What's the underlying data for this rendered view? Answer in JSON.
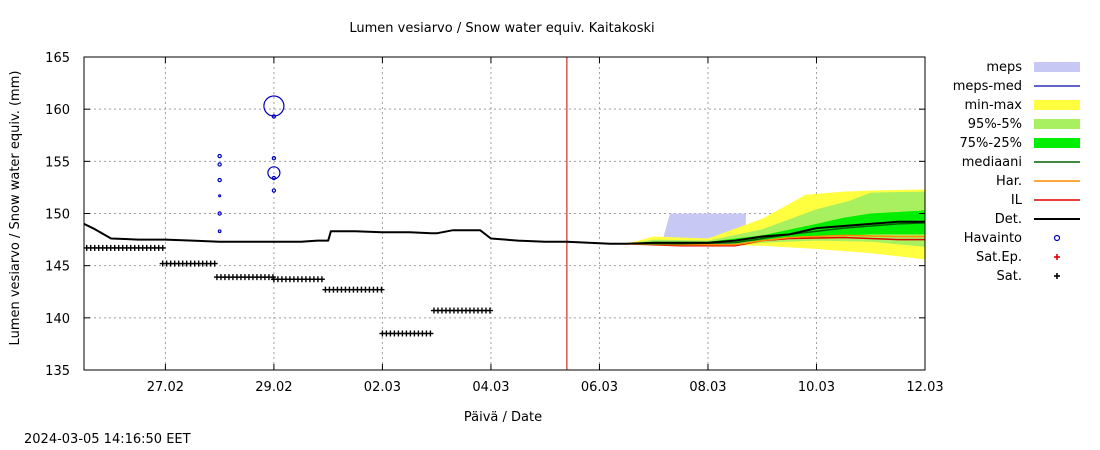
{
  "chart_data": {
    "type": "line",
    "title": "Lumen vesiarvo / Snow water equiv.  Kaitakoski",
    "xlabel": "Päivä / Date",
    "ylabel": "Lumen vesiarvo / Snow water equiv. (mm)",
    "footer": "2024-03-05 14:16:50 EET",
    "ylim": [
      135,
      165
    ],
    "yticks": [
      135,
      140,
      145,
      150,
      155,
      160,
      165
    ],
    "xlim_days": [
      -1.5,
      14.0
    ],
    "xticks": [
      {
        "label": "27.02",
        "day": 0
      },
      {
        "label": "29.02",
        "day": 2
      },
      {
        "label": "02.03",
        "day": 4
      },
      {
        "label": "04.03",
        "day": 6
      },
      {
        "label": "06.03",
        "day": 8
      },
      {
        "label": "08.03",
        "day": 10
      },
      {
        "label": "10.03",
        "day": 12
      },
      {
        "label": "12.03",
        "day": 14
      }
    ],
    "grid": true,
    "legend_position": "right",
    "now_day": 7.4,
    "colors": {
      "meps": "#c8c8f5",
      "meps_med": "#3030c0",
      "min_max": "#ffff40",
      "p95_5": "#a8f060",
      "p75_25": "#00ee00",
      "median": "#006000",
      "har": "#ff8c00",
      "il": "#e00000",
      "det": "#000000",
      "observation": "#0000c0",
      "sat_ep": "#e00000",
      "sat": "#000000",
      "now_line": "#cc0000"
    },
    "legend": [
      {
        "label": "meps",
        "key": "meps",
        "style": "band"
      },
      {
        "label": "meps-med",
        "key": "meps_med",
        "style": "line"
      },
      {
        "label": "min-max",
        "key": "min_max",
        "style": "band"
      },
      {
        "label": "95%-5%",
        "key": "p95_5",
        "style": "band"
      },
      {
        "label": "75%-25%",
        "key": "p75_25",
        "style": "band"
      },
      {
        "label": "mediaani",
        "key": "median",
        "style": "line"
      },
      {
        "label": "Har.",
        "key": "har",
        "style": "line"
      },
      {
        "label": "IL",
        "key": "il",
        "style": "line"
      },
      {
        "label": "Det.",
        "key": "det",
        "style": "thickline"
      },
      {
        "label": "Havainto",
        "key": "observation",
        "style": "circle"
      },
      {
        "label": "Sat.Ep.",
        "key": "sat_ep",
        "style": "plus"
      },
      {
        "label": "Sat.",
        "key": "sat",
        "style": "plus"
      }
    ],
    "series": [
      {
        "name": "Det.",
        "key": "det",
        "x": [
          -1.5,
          -1.3,
          -1.0,
          -0.5,
          0.0,
          0.5,
          1.0,
          1.5,
          2.0,
          2.5,
          2.8,
          3.0,
          3.05,
          3.5,
          4.0,
          4.5,
          4.9,
          5.0,
          5.3,
          5.5,
          5.8,
          6.0,
          6.5,
          7.0,
          7.4,
          7.8,
          8.2,
          8.5,
          9.0,
          9.5,
          10.0,
          10.5,
          11.0,
          11.5,
          12.0,
          12.5,
          13.0,
          13.5,
          14.0
        ],
        "y": [
          149.0,
          148.5,
          147.6,
          147.5,
          147.5,
          147.4,
          147.3,
          147.3,
          147.3,
          147.3,
          147.4,
          147.4,
          148.3,
          148.3,
          148.2,
          148.2,
          148.1,
          148.1,
          148.4,
          148.4,
          148.4,
          147.6,
          147.4,
          147.3,
          147.3,
          147.2,
          147.1,
          147.1,
          147.2,
          147.2,
          147.2,
          147.4,
          147.8,
          148.0,
          148.6,
          148.8,
          149.0,
          149.2,
          149.2
        ]
      },
      {
        "name": "IL",
        "key": "il",
        "x": [
          8.5,
          9.5,
          10.5,
          11.0,
          11.5,
          12.5,
          13.5,
          14.0
        ],
        "y": [
          147.1,
          146.9,
          146.9,
          147.4,
          147.6,
          147.7,
          147.5,
          147.5
        ]
      },
      {
        "name": "Har.",
        "key": "har",
        "x": [
          8.5,
          9.5,
          10.5,
          11.0,
          11.5,
          12.5,
          13.5,
          14.0
        ],
        "y": [
          147.1,
          147.0,
          147.0,
          147.4,
          147.7,
          147.9,
          147.8,
          147.8
        ]
      },
      {
        "name": "mediaani",
        "key": "median",
        "x": [
          8.5,
          9.5,
          10.5,
          11.0,
          11.5,
          12.5,
          13.5,
          14.0
        ],
        "y": [
          147.1,
          147.1,
          147.2,
          147.6,
          148.0,
          148.6,
          149.0,
          149.1
        ]
      }
    ],
    "bands": [
      {
        "name": "meps",
        "key": "meps",
        "x": [
          9.15,
          9.3,
          10.6,
          10.7,
          10.7,
          9.3,
          9.15
        ],
        "y": [
          147.2,
          150.0,
          150.0,
          150.0,
          147.1,
          147.2,
          147.2
        ]
      },
      {
        "name": "min-max",
        "key": "min_max",
        "x": [
          8.5,
          9.0,
          10.0,
          11.0,
          11.8,
          12.5,
          13.0,
          14.0,
          14.0,
          13.0,
          12.0,
          11.0,
          10.0,
          9.0,
          8.5
        ],
        "y": [
          147.1,
          147.8,
          147.6,
          149.5,
          151.8,
          152.1,
          152.2,
          152.3,
          145.6,
          146.2,
          146.6,
          146.9,
          147.0,
          147.0,
          147.1
        ]
      },
      {
        "name": "95%-5%",
        "key": "p95_5",
        "x": [
          8.5,
          9.0,
          10.0,
          11.0,
          12.0,
          12.6,
          13.0,
          14.0,
          14.0,
          13.0,
          12.0,
          11.0,
          10.0,
          9.0,
          8.5
        ],
        "y": [
          147.1,
          147.5,
          147.4,
          148.5,
          150.4,
          151.2,
          152.0,
          152.1,
          146.8,
          147.3,
          147.4,
          147.2,
          147.0,
          147.0,
          147.1
        ]
      },
      {
        "name": "75%-25%",
        "key": "p75_25",
        "x": [
          8.5,
          9.0,
          10.0,
          11.0,
          12.0,
          12.5,
          13.0,
          14.0,
          14.0,
          13.0,
          12.0,
          11.0,
          10.0,
          9.0,
          8.5
        ],
        "y": [
          147.1,
          147.3,
          147.3,
          147.9,
          149.0,
          149.6,
          150.0,
          150.3,
          148.0,
          148.0,
          147.8,
          147.4,
          147.1,
          147.1,
          147.1
        ]
      }
    ],
    "observations": [
      {
        "x": 1.0,
        "y": 155.5,
        "r": 1
      },
      {
        "x": 1.0,
        "y": 154.7,
        "r": 1
      },
      {
        "x": 1.0,
        "y": 153.2,
        "r": 1
      },
      {
        "x": 1.0,
        "y": 151.7,
        "r": 0.6
      },
      {
        "x": 1.0,
        "y": 150.0,
        "r": 1
      },
      {
        "x": 1.0,
        "y": 148.3,
        "r": 0.8
      },
      {
        "x": 2.0,
        "y": 160.3,
        "r": 5
      },
      {
        "x": 2.0,
        "y": 159.3,
        "r": 1
      },
      {
        "x": 2.0,
        "y": 155.3,
        "r": 1
      },
      {
        "x": 2.0,
        "y": 153.9,
        "r": 3
      },
      {
        "x": 2.0,
        "y": 153.4,
        "r": 1
      },
      {
        "x": 2.0,
        "y": 152.2,
        "r": 1
      }
    ],
    "sat_segments": [
      {
        "x0": -1.45,
        "x1": -0.05,
        "y": 146.7
      },
      {
        "x0": -0.05,
        "x1": 0.95,
        "y": 145.2
      },
      {
        "x0": 0.95,
        "x1": 2.0,
        "y": 143.9
      },
      {
        "x0": 2.0,
        "x1": 2.95,
        "y": 143.7
      },
      {
        "x0": 2.95,
        "x1": 4.0,
        "y": 142.7
      },
      {
        "x0": 4.0,
        "x1": 4.95,
        "y": 138.5
      },
      {
        "x0": 4.95,
        "x1": 6.0,
        "y": 140.7
      }
    ]
  }
}
